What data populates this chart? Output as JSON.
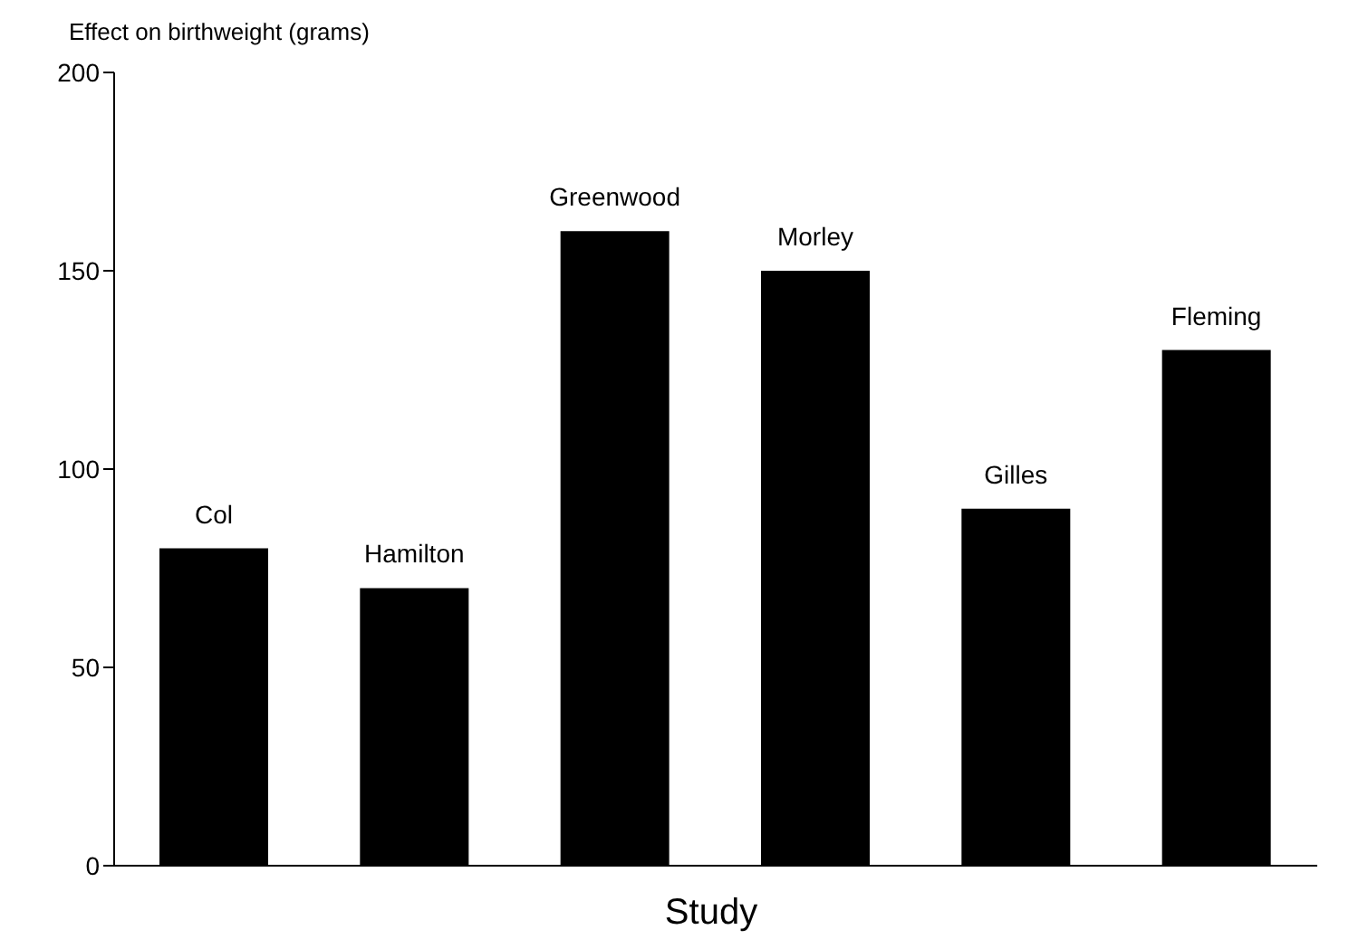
{
  "chart_data": {
    "type": "bar",
    "ylabel": "Effect on birthweight (grams)",
    "xlabel": "Study",
    "categories": [
      "Col",
      "Hamilton",
      "Greenwood",
      "Morley",
      "Gilles",
      "Fleming"
    ],
    "values": [
      80,
      70,
      160,
      150,
      90,
      130
    ],
    "color": "#000000",
    "ylim": [
      0,
      200
    ],
    "yticks": [
      0,
      50,
      100,
      150,
      200
    ],
    "grid": false
  }
}
